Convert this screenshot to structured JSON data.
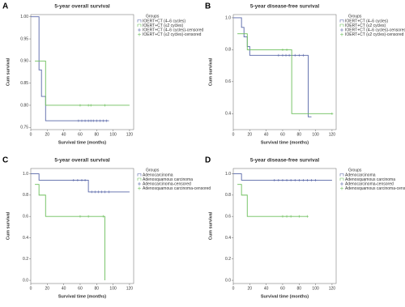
{
  "chart_data": [
    {
      "type": "line",
      "panel": "A",
      "title": "5-year overall survival",
      "xlabel": "Survival time (months)",
      "ylabel": "Cum survival",
      "legend_title": "Groups",
      "legend": "upper right",
      "xlim": [
        0,
        125
      ],
      "xticks": [
        0,
        20,
        40,
        60,
        80,
        100,
        120
      ],
      "ylim": [
        0.745,
        1.005
      ],
      "yticks": [
        {
          "value": 0.75,
          "label": "0.75"
        },
        {
          "value": 0.8,
          "label": "0.80"
        },
        {
          "value": 0.85,
          "label": "0.85"
        },
        {
          "value": 0.9,
          "label": "0.90"
        },
        {
          "value": 0.95,
          "label": "0.95"
        },
        {
          "value": 1.0,
          "label": "1.00"
        }
      ],
      "series": [
        {
          "name": "IOERT+CT (4–6 cycles)",
          "color": "#5867a8",
          "marker": "step",
          "x": [
            0,
            10,
            10,
            13,
            13,
            18,
            18,
            95
          ],
          "values": [
            1.0,
            1.0,
            0.88,
            0.88,
            0.82,
            0.82,
            0.765,
            0.765
          ]
        },
        {
          "name": "IOERT+CT (≤2 cycles)",
          "color": "#6cbf5b",
          "marker": "step",
          "x": [
            5,
            18,
            18,
            120
          ],
          "values": [
            0.9,
            0.9,
            0.8,
            0.8
          ]
        },
        {
          "name": "IOERT+CT (4–6 cycles)-censored",
          "color": "#5867a8",
          "marker": "plus",
          "x": [
            58,
            62,
            66,
            70,
            73,
            76,
            80,
            84,
            88,
            92
          ],
          "values": [
            0.765,
            0.765,
            0.765,
            0.765,
            0.765,
            0.765,
            0.765,
            0.765,
            0.765,
            0.765
          ]
        },
        {
          "name": "IOERT+CT (≤2 cycles)-censored",
          "color": "#6cbf5b",
          "marker": "plus",
          "x": [
            60,
            70,
            73,
            90
          ],
          "values": [
            0.8,
            0.8,
            0.8,
            0.8
          ]
        }
      ]
    },
    {
      "type": "line",
      "panel": "B",
      "title": "5-year disease-free survival",
      "xlabel": "Survival time (months)",
      "ylabel": "Cum survival",
      "legend_title": "Groups",
      "legend": "upper right",
      "xlim": [
        0,
        125
      ],
      "xticks": [
        0,
        20,
        40,
        60,
        80,
        100,
        120
      ],
      "ylim": [
        0.3,
        1.02
      ],
      "yticks": [
        0.4,
        0.6,
        0.8,
        {
          "value": 1.0,
          "label": "1.0"
        }
      ],
      "series": [
        {
          "name": "IOERT+CT (4–6 cycles)",
          "color": "#5867a8",
          "marker": "step",
          "x": [
            0,
            10,
            10,
            13,
            13,
            17,
            17,
            20,
            20,
            91,
            91,
            95
          ],
          "values": [
            1.0,
            1.0,
            0.94,
            0.94,
            0.88,
            0.88,
            0.82,
            0.82,
            0.765,
            0.765,
            0.38,
            0.38
          ]
        },
        {
          "name": "IOERT+CT (≤2 cycles)",
          "color": "#6cbf5b",
          "marker": "step",
          "x": [
            5,
            17,
            17,
            71,
            71,
            120
          ],
          "values": [
            0.9,
            0.9,
            0.8,
            0.8,
            0.4,
            0.4
          ]
        },
        {
          "name": "IOERT+CT (4–6 cycles)-censored",
          "color": "#5867a8",
          "marker": "plus",
          "x": [
            55,
            60,
            64,
            68,
            75,
            80,
            85
          ],
          "values": [
            0.765,
            0.765,
            0.765,
            0.765,
            0.765,
            0.765,
            0.765
          ]
        },
        {
          "name": "IOERT+CT (≤2 cycles)-censored",
          "color": "#6cbf5b",
          "marker": "plus",
          "x": [
            60,
            65,
            120
          ],
          "values": [
            0.8,
            0.8,
            0.4
          ]
        }
      ]
    },
    {
      "type": "line",
      "panel": "C",
      "title": "5-year overall survival",
      "xlabel": "Survival time (months)",
      "ylabel": "Cum survival",
      "legend_title": "Groups",
      "legend": "upper right",
      "xlim": [
        0,
        125
      ],
      "xticks": [
        0,
        20,
        40,
        60,
        80,
        100,
        120
      ],
      "ylim": [
        -0.03,
        1.05
      ],
      "yticks": [
        {
          "value": 0,
          "label": "0.0"
        },
        0.2,
        0.4,
        0.6,
        0.8,
        {
          "value": 1.0,
          "label": "1.0"
        }
      ],
      "series": [
        {
          "name": "Adenocarcinoma",
          "color": "#5867a8",
          "marker": "step",
          "x": [
            0,
            10,
            10,
            70,
            70,
            120
          ],
          "values": [
            1.0,
            1.0,
            0.94,
            0.94,
            0.83,
            0.83
          ]
        },
        {
          "name": "Adenosquamous carcinoma",
          "color": "#6cbf5b",
          "marker": "step",
          "x": [
            5,
            10,
            10,
            18,
            18,
            90,
            90
          ],
          "values": [
            0.9,
            0.9,
            0.8,
            0.8,
            0.6,
            0.6,
            0.0
          ]
        },
        {
          "name": "Adenocarcinoma-censored",
          "color": "#5867a8",
          "marker": "plus",
          "x": [
            52,
            57,
            62,
            66,
            74,
            78,
            82,
            86,
            90,
            95
          ],
          "values": [
            0.94,
            0.94,
            0.94,
            0.94,
            0.83,
            0.83,
            0.83,
            0.83,
            0.83,
            0.83
          ]
        },
        {
          "name": "Adenosquamous carcinoma-censored",
          "color": "#6cbf5b",
          "marker": "plus",
          "x": [
            60,
            70,
            88
          ],
          "values": [
            0.6,
            0.6,
            0.6
          ]
        }
      ]
    },
    {
      "type": "line",
      "panel": "D",
      "title": "5-year disease-free survival",
      "xlabel": "Survival time (months)",
      "ylabel": "Cum survival",
      "legend_title": "Groups",
      "legend": "upper right",
      "xlim": [
        0,
        125
      ],
      "xticks": [
        0,
        20,
        40,
        60,
        80,
        100,
        120
      ],
      "ylim": [
        -0.03,
        1.05
      ],
      "yticks": [
        {
          "value": 0,
          "label": "0.0"
        },
        0.2,
        0.4,
        0.6,
        0.8,
        {
          "value": 1.0,
          "label": "1.0"
        }
      ],
      "series": [
        {
          "name": "Adenocarcinoma",
          "color": "#5867a8",
          "marker": "step",
          "x": [
            0,
            10,
            10,
            120
          ],
          "values": [
            1.0,
            1.0,
            0.94,
            0.94
          ]
        },
        {
          "name": "Adenosquamous carcinoma",
          "color": "#6cbf5b",
          "marker": "step",
          "x": [
            5,
            10,
            10,
            17,
            17,
            90
          ],
          "values": [
            0.9,
            0.9,
            0.8,
            0.8,
            0.6,
            0.6
          ]
        },
        {
          "name": "Adenocarcinoma-censored",
          "color": "#5867a8",
          "marker": "plus",
          "x": [
            50,
            55,
            60,
            65,
            70,
            75,
            80,
            85,
            90,
            95,
            100
          ],
          "values": [
            0.94,
            0.94,
            0.94,
            0.94,
            0.94,
            0.94,
            0.94,
            0.94,
            0.94,
            0.94,
            0.94
          ]
        },
        {
          "name": "Adenosquamous carcinoma-censored",
          "color": "#6cbf5b",
          "marker": "plus",
          "x": [
            60,
            65,
            70,
            80,
            90
          ],
          "values": [
            0.6,
            0.6,
            0.6,
            0.6,
            0.6
          ]
        }
      ]
    }
  ]
}
